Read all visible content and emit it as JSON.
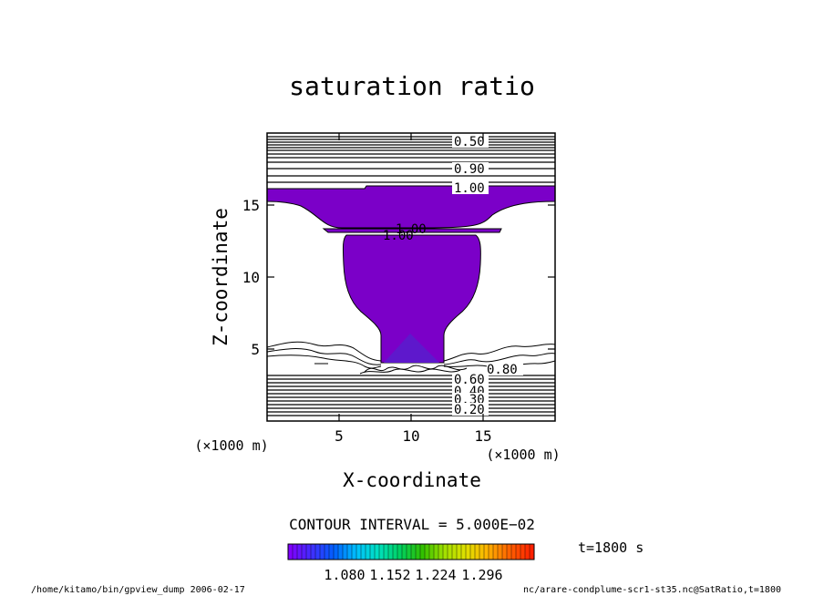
{
  "chart_data": {
    "type": "contour",
    "title": "saturation ratio",
    "xlabel": "X-coordinate",
    "ylabel": "Z-coordinate",
    "x_unit": "(×1000 m)",
    "z_unit": "(×1000 m)",
    "xlim": [
      0,
      20
    ],
    "ylim": [
      0,
      20
    ],
    "x_ticks": [
      5,
      10,
      15
    ],
    "y_ticks": [
      5,
      10,
      15
    ],
    "contour_interval_text": "CONTOUR INTERVAL = 5.000E−02",
    "contour_labels": [
      "0.50",
      "0.90",
      "1.00",
      "1.00",
      "1.00",
      "0.80",
      "0.60",
      "0.40",
      "0.30",
      "0.20"
    ],
    "colorbar": {
      "tick_labels": [
        "1.080",
        "1.152",
        "1.224",
        "1.296"
      ],
      "colors": [
        "#7f00ff",
        "#3f2fff",
        "#0060ff",
        "#00c0ff",
        "#00e0c0",
        "#00d060",
        "#30c000",
        "#a0e000",
        "#e0e000",
        "#ffb000",
        "#ff6000",
        "#ff2000"
      ]
    },
    "fill_color": "#7b00c8",
    "time_label": "t=1800 s"
  },
  "footer": {
    "left": "/home/kitamo/bin/gpview_dump  2006-02-17",
    "right": "nc/arare-condplume-scr1-st35.nc@SatRatio,t=1800"
  }
}
